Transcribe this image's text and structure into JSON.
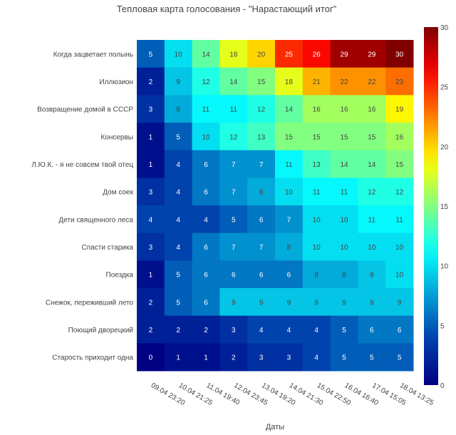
{
  "chart_data": {
    "type": "heatmap",
    "title": "Тепловая карта голосования - \"Нарастающий итог\"",
    "xlabel": "Даты",
    "ylabel": "",
    "x": [
      "09.04 23:20",
      "10.04 21:25",
      "11.04 19:40",
      "12.04 23:45",
      "13.04 19:20",
      "14.04 21:30",
      "15.04 22:50",
      "16.04 16:40",
      "17.04 15:05",
      "18.04 13:25"
    ],
    "y": [
      "Когда зацветает полынь",
      "Иллюзион",
      "Возвращение домой в СССР",
      "Консервы",
      "Л.Ю.К. - я не совсем твой отец",
      "Дом соек",
      "Дети священного леса",
      "Спасти старика",
      "Поездка",
      "Снежок, переживший лето",
      "Поющий дворецкий",
      "Старость приходит одна"
    ],
    "z": [
      [
        5,
        10,
        14,
        18,
        20,
        25,
        26,
        29,
        29,
        30
      ],
      [
        2,
        9,
        12,
        14,
        15,
        18,
        21,
        22,
        22,
        23
      ],
      [
        3,
        8,
        11,
        11,
        12,
        14,
        16,
        16,
        16,
        19
      ],
      [
        1,
        5,
        10,
        12,
        13,
        15,
        15,
        15,
        15,
        16
      ],
      [
        1,
        4,
        6,
        7,
        7,
        11,
        13,
        14,
        14,
        15
      ],
      [
        3,
        4,
        6,
        7,
        8,
        10,
        11,
        11,
        12,
        12
      ],
      [
        4,
        4,
        4,
        5,
        6,
        7,
        10,
        10,
        11,
        11
      ],
      [
        3,
        4,
        6,
        7,
        7,
        8,
        10,
        10,
        10,
        10
      ],
      [
        1,
        5,
        6,
        6,
        6,
        6,
        8,
        8,
        9,
        10
      ],
      [
        2,
        5,
        6,
        9,
        9,
        9,
        9,
        9,
        9,
        9
      ],
      [
        2,
        2,
        2,
        3,
        4,
        4,
        4,
        5,
        6,
        6
      ],
      [
        0,
        1,
        1,
        2,
        3,
        3,
        4,
        5,
        5,
        5
      ]
    ],
    "zlim": [
      0,
      30
    ],
    "colorbar_ticks": [
      0,
      5,
      10,
      15,
      20,
      25,
      30
    ],
    "colorscale": "Jet"
  }
}
